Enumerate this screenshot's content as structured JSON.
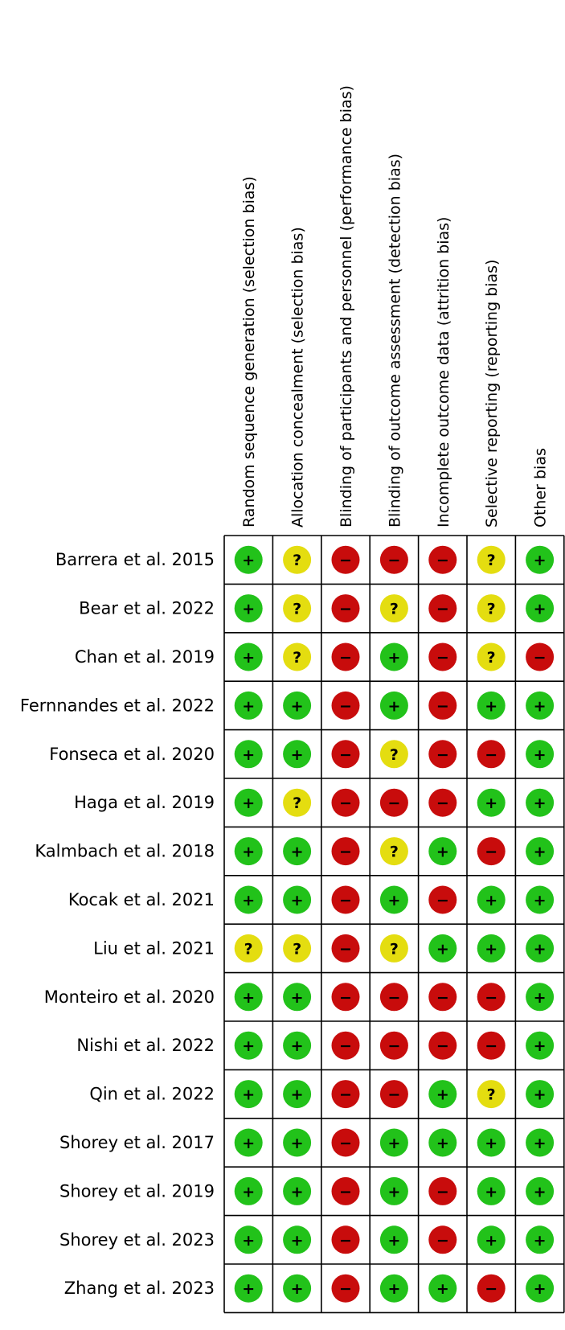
{
  "chart_data": {
    "type": "table",
    "columns": [
      "Random sequence generation (selection bias)",
      "Allocation concealment (selection bias)",
      "Blinding of participants and personnel (performance bias)",
      "Blinding of outcome assessment (detection bias)",
      "Incomplete outcome data (attrition bias)",
      "Selective reporting (reporting bias)",
      "Other bias"
    ],
    "rows": [
      {
        "study": "Barrera et al. 2015",
        "ratings": [
          "low",
          "unclear",
          "high",
          "high",
          "high",
          "unclear",
          "low"
        ]
      },
      {
        "study": "Bear et al. 2022",
        "ratings": [
          "low",
          "unclear",
          "high",
          "unclear",
          "high",
          "unclear",
          "low"
        ]
      },
      {
        "study": "Chan et al. 2019",
        "ratings": [
          "low",
          "unclear",
          "high",
          "low",
          "high",
          "unclear",
          "high"
        ]
      },
      {
        "study": "Fernnandes et al. 2022",
        "ratings": [
          "low",
          "low",
          "high",
          "low",
          "high",
          "low",
          "low"
        ]
      },
      {
        "study": "Fonseca et al. 2020",
        "ratings": [
          "low",
          "low",
          "high",
          "unclear",
          "high",
          "high",
          "low"
        ]
      },
      {
        "study": "Haga et al. 2019",
        "ratings": [
          "low",
          "unclear",
          "high",
          "high",
          "high",
          "low",
          "low"
        ]
      },
      {
        "study": "Kalmbach et al. 2018",
        "ratings": [
          "low",
          "low",
          "high",
          "unclear",
          "low",
          "high",
          "low"
        ]
      },
      {
        "study": "Kocak et al. 2021",
        "ratings": [
          "low",
          "low",
          "high",
          "low",
          "high",
          "low",
          "low"
        ]
      },
      {
        "study": "Liu et al. 2021",
        "ratings": [
          "unclear",
          "unclear",
          "high",
          "unclear",
          "low",
          "low",
          "low"
        ]
      },
      {
        "study": "Monteiro et al. 2020",
        "ratings": [
          "low",
          "low",
          "high",
          "high",
          "high",
          "high",
          "low"
        ]
      },
      {
        "study": "Nishi et al. 2022",
        "ratings": [
          "low",
          "low",
          "high",
          "high",
          "high",
          "high",
          "low"
        ]
      },
      {
        "study": "Qin et al. 2022",
        "ratings": [
          "low",
          "low",
          "high",
          "high",
          "low",
          "unclear",
          "low"
        ]
      },
      {
        "study": "Shorey et al. 2017",
        "ratings": [
          "low",
          "low",
          "high",
          "low",
          "low",
          "low",
          "low"
        ]
      },
      {
        "study": "Shorey et al. 2019",
        "ratings": [
          "low",
          "low",
          "high",
          "low",
          "high",
          "low",
          "low"
        ]
      },
      {
        "study": "Shorey et al. 2023",
        "ratings": [
          "low",
          "low",
          "high",
          "low",
          "high",
          "low",
          "low"
        ]
      },
      {
        "study": "Zhang et al. 2023",
        "ratings": [
          "low",
          "low",
          "high",
          "low",
          "low",
          "high",
          "low"
        ]
      }
    ],
    "legend": {
      "low": {
        "symbol": "+",
        "color": "#22c21a"
      },
      "unclear": {
        "symbol": "?",
        "color": "#e4dd10"
      },
      "high": {
        "symbol": "−",
        "color": "#c80c0c"
      }
    }
  }
}
